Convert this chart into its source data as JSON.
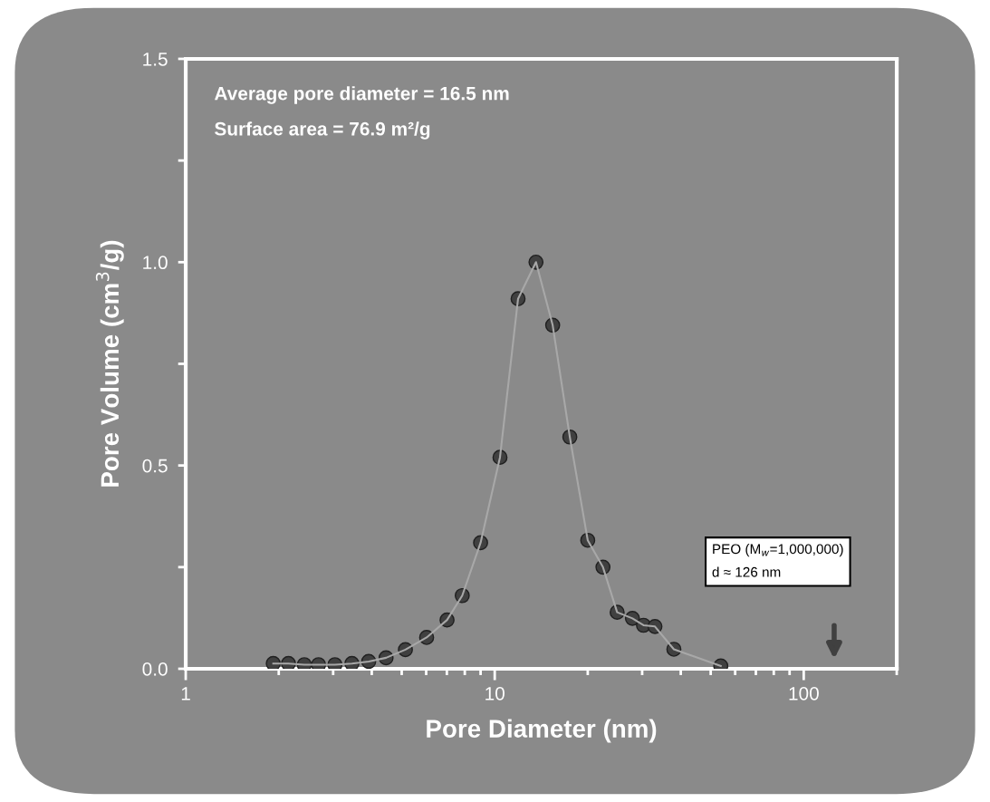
{
  "chart_data": {
    "type": "line",
    "xlabel": "Pore Diameter (nm)",
    "ylabel": "Pore Volume (cm$^{3}$/g)",
    "x": [
      1.92,
      2.15,
      2.42,
      2.69,
      3.04,
      3.45,
      3.91,
      4.45,
      5.14,
      6.02,
      7.01,
      7.85,
      9.0,
      10.4,
      11.9,
      13.6,
      15.4,
      17.5,
      20.0,
      22.4,
      24.9,
      27.9,
      30.3,
      33.0,
      38.0,
      53.9
    ],
    "series": [
      {
        "color": "#404040",
        "values": [
          0.013,
          0.013,
          0.01,
          0.01,
          0.01,
          0.013,
          0.018,
          0.027,
          0.047,
          0.077,
          0.12,
          0.18,
          0.31,
          0.52,
          0.91,
          1.0,
          0.845,
          0.57,
          0.316,
          0.25,
          0.139,
          0.124,
          0.107,
          0.104,
          0.048,
          0.007
        ]
      }
    ],
    "marker": "circle",
    "line_style": "solid",
    "log": "x",
    "grid": false,
    "legend": false,
    "xlim": [
      1,
      200
    ],
    "xticks": [
      1,
      {
        "value": 2,
        "label": null
      },
      {
        "value": 3,
        "label": null
      },
      {
        "value": 4,
        "label": null
      },
      {
        "value": 5,
        "label": null
      },
      {
        "value": 6,
        "label": null
      },
      {
        "value": 7,
        "label": null
      },
      {
        "value": 8,
        "label": null
      },
      {
        "value": 9,
        "label": null
      },
      10,
      {
        "value": 20,
        "label": null
      },
      {
        "value": 30,
        "label": null
      },
      {
        "value": 40,
        "label": null
      },
      {
        "value": 50,
        "label": null
      },
      {
        "value": 60,
        "label": null
      },
      {
        "value": 70,
        "label": null
      },
      {
        "value": 80,
        "label": null
      },
      {
        "value": 90,
        "label": null
      },
      100,
      {
        "value": 200,
        "label": null
      }
    ],
    "ylim": [
      0,
      1.5
    ],
    "yticks": [
      {
        "value": 0,
        "label": "0.0"
      },
      {
        "value": 0.25,
        "label": null
      },
      {
        "value": 0.5,
        "label": "0.5"
      },
      {
        "value": 0.75,
        "label": null
      },
      {
        "value": 1.0,
        "label": "1.0"
      },
      {
        "value": 1.25,
        "label": null
      },
      {
        "value": 1.5,
        "label": "1.5"
      }
    ],
    "annotations": [
      "Average pore diameter = 16.5 nm",
      "Surface area = 76.9 m²/g",
      "PEO (M$_{w}$=1,000,000)\nd ≈ 126 nm"
    ]
  }
}
